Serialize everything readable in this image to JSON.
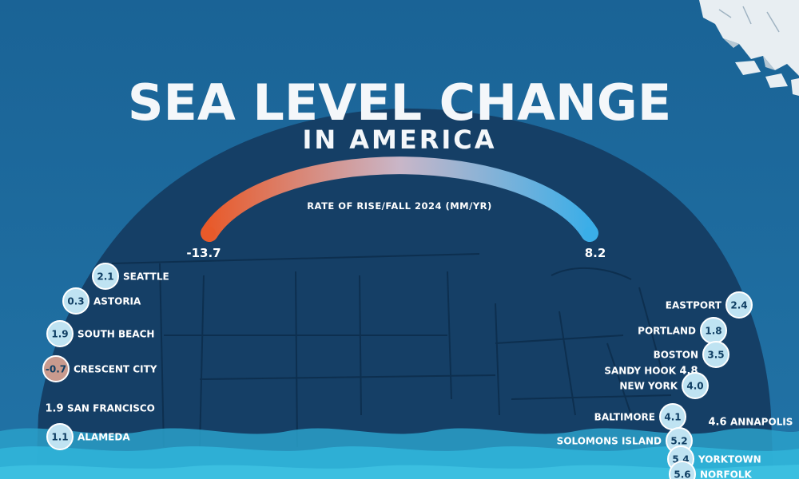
{
  "title": "SEA LEVEL CHANGE",
  "subtitle": "IN AMERICA",
  "colors": {
    "ocean": "#1e6a9c",
    "land": "#153f66",
    "state_lines": "#0f2f50",
    "rise": "#3aaee8",
    "fall": "#e85a2a",
    "bubble": "#bfe3f2",
    "bubble_negative": "#c89a8e",
    "water": "#2aa6d0"
  },
  "chart_data": {
    "type": "scatter",
    "scale": {
      "label": "RATE OF RISE/FALL 2024 (MM/YR)",
      "min": -13.7,
      "max": 8.2,
      "min_label": "-13.7",
      "max_label": "8.2"
    },
    "west_coast": [
      {
        "city": "SEATTLE",
        "value": 2.1,
        "label": "2.1",
        "style": "bubble"
      },
      {
        "city": "ASTORIA",
        "value": 0.3,
        "label": "0.3",
        "style": "bubble"
      },
      {
        "city": "SOUTH BEACH",
        "value": 1.9,
        "label": "1.9",
        "style": "bubble"
      },
      {
        "city": "CRESCENT CITY",
        "value": -0.7,
        "label": "-0.7",
        "style": "bubble"
      },
      {
        "city": "SAN FRANCISCO",
        "value": 1.9,
        "label": "1.9",
        "style": "plain"
      },
      {
        "city": "ALAMEDA",
        "value": 1.1,
        "label": "1.1",
        "style": "bubble"
      }
    ],
    "east_coast": [
      {
        "city": "EASTPORT",
        "value": 2.4,
        "label": "2.4",
        "style": "bubble"
      },
      {
        "city": "PORTLAND",
        "value": 1.8,
        "label": "1.8",
        "style": "bubble"
      },
      {
        "city": "BOSTON",
        "value": 3.5,
        "label": "3.5",
        "style": "bubble"
      },
      {
        "city": "SANDY HOOK",
        "value": 4.8,
        "label": "4.8",
        "style": "plain"
      },
      {
        "city": "NEW YORK",
        "value": 4.0,
        "label": "4.0",
        "style": "bubble"
      },
      {
        "city": "BALTIMORE",
        "value": 4.1,
        "label": "4.1",
        "style": "bubble"
      },
      {
        "city": "ANNAPOLIS",
        "value": 4.6,
        "label": "4.6",
        "style": "plain"
      },
      {
        "city": "SOLOMONS ISLAND",
        "value": 5.2,
        "label": "5.2",
        "style": "bubble"
      },
      {
        "city": "YORKTOWN",
        "value": 5.4,
        "label": "5.4",
        "style": "bubble"
      },
      {
        "city": "NORFOLK",
        "value": 5.6,
        "label": "5.6",
        "style": "bubble"
      }
    ]
  }
}
